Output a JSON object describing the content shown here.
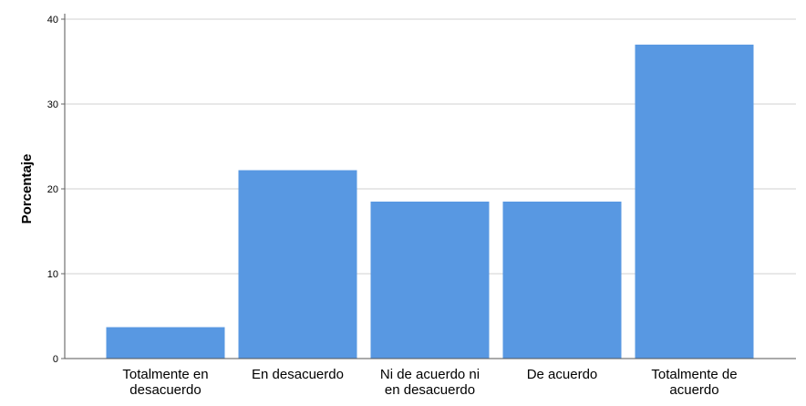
{
  "chart_data": {
    "type": "bar",
    "ylabel": "Porcentaje",
    "xlabel": "",
    "ylim": [
      0,
      40
    ],
    "yticks": [
      0,
      10,
      20,
      30,
      40
    ],
    "grid": true,
    "categories": [
      [
        "Totalmente en",
        "desacuerdo"
      ],
      [
        "En desacuerdo"
      ],
      [
        "Ni de acuerdo ni",
        "en desacuerdo"
      ],
      [
        "De acuerdo"
      ],
      [
        "Totalmente de",
        "acuerdo"
      ]
    ],
    "values": [
      3.7,
      22.2,
      18.5,
      18.5,
      37.0
    ],
    "bar_color": "#5898e2",
    "grid_color": "#d0d0d0"
  }
}
